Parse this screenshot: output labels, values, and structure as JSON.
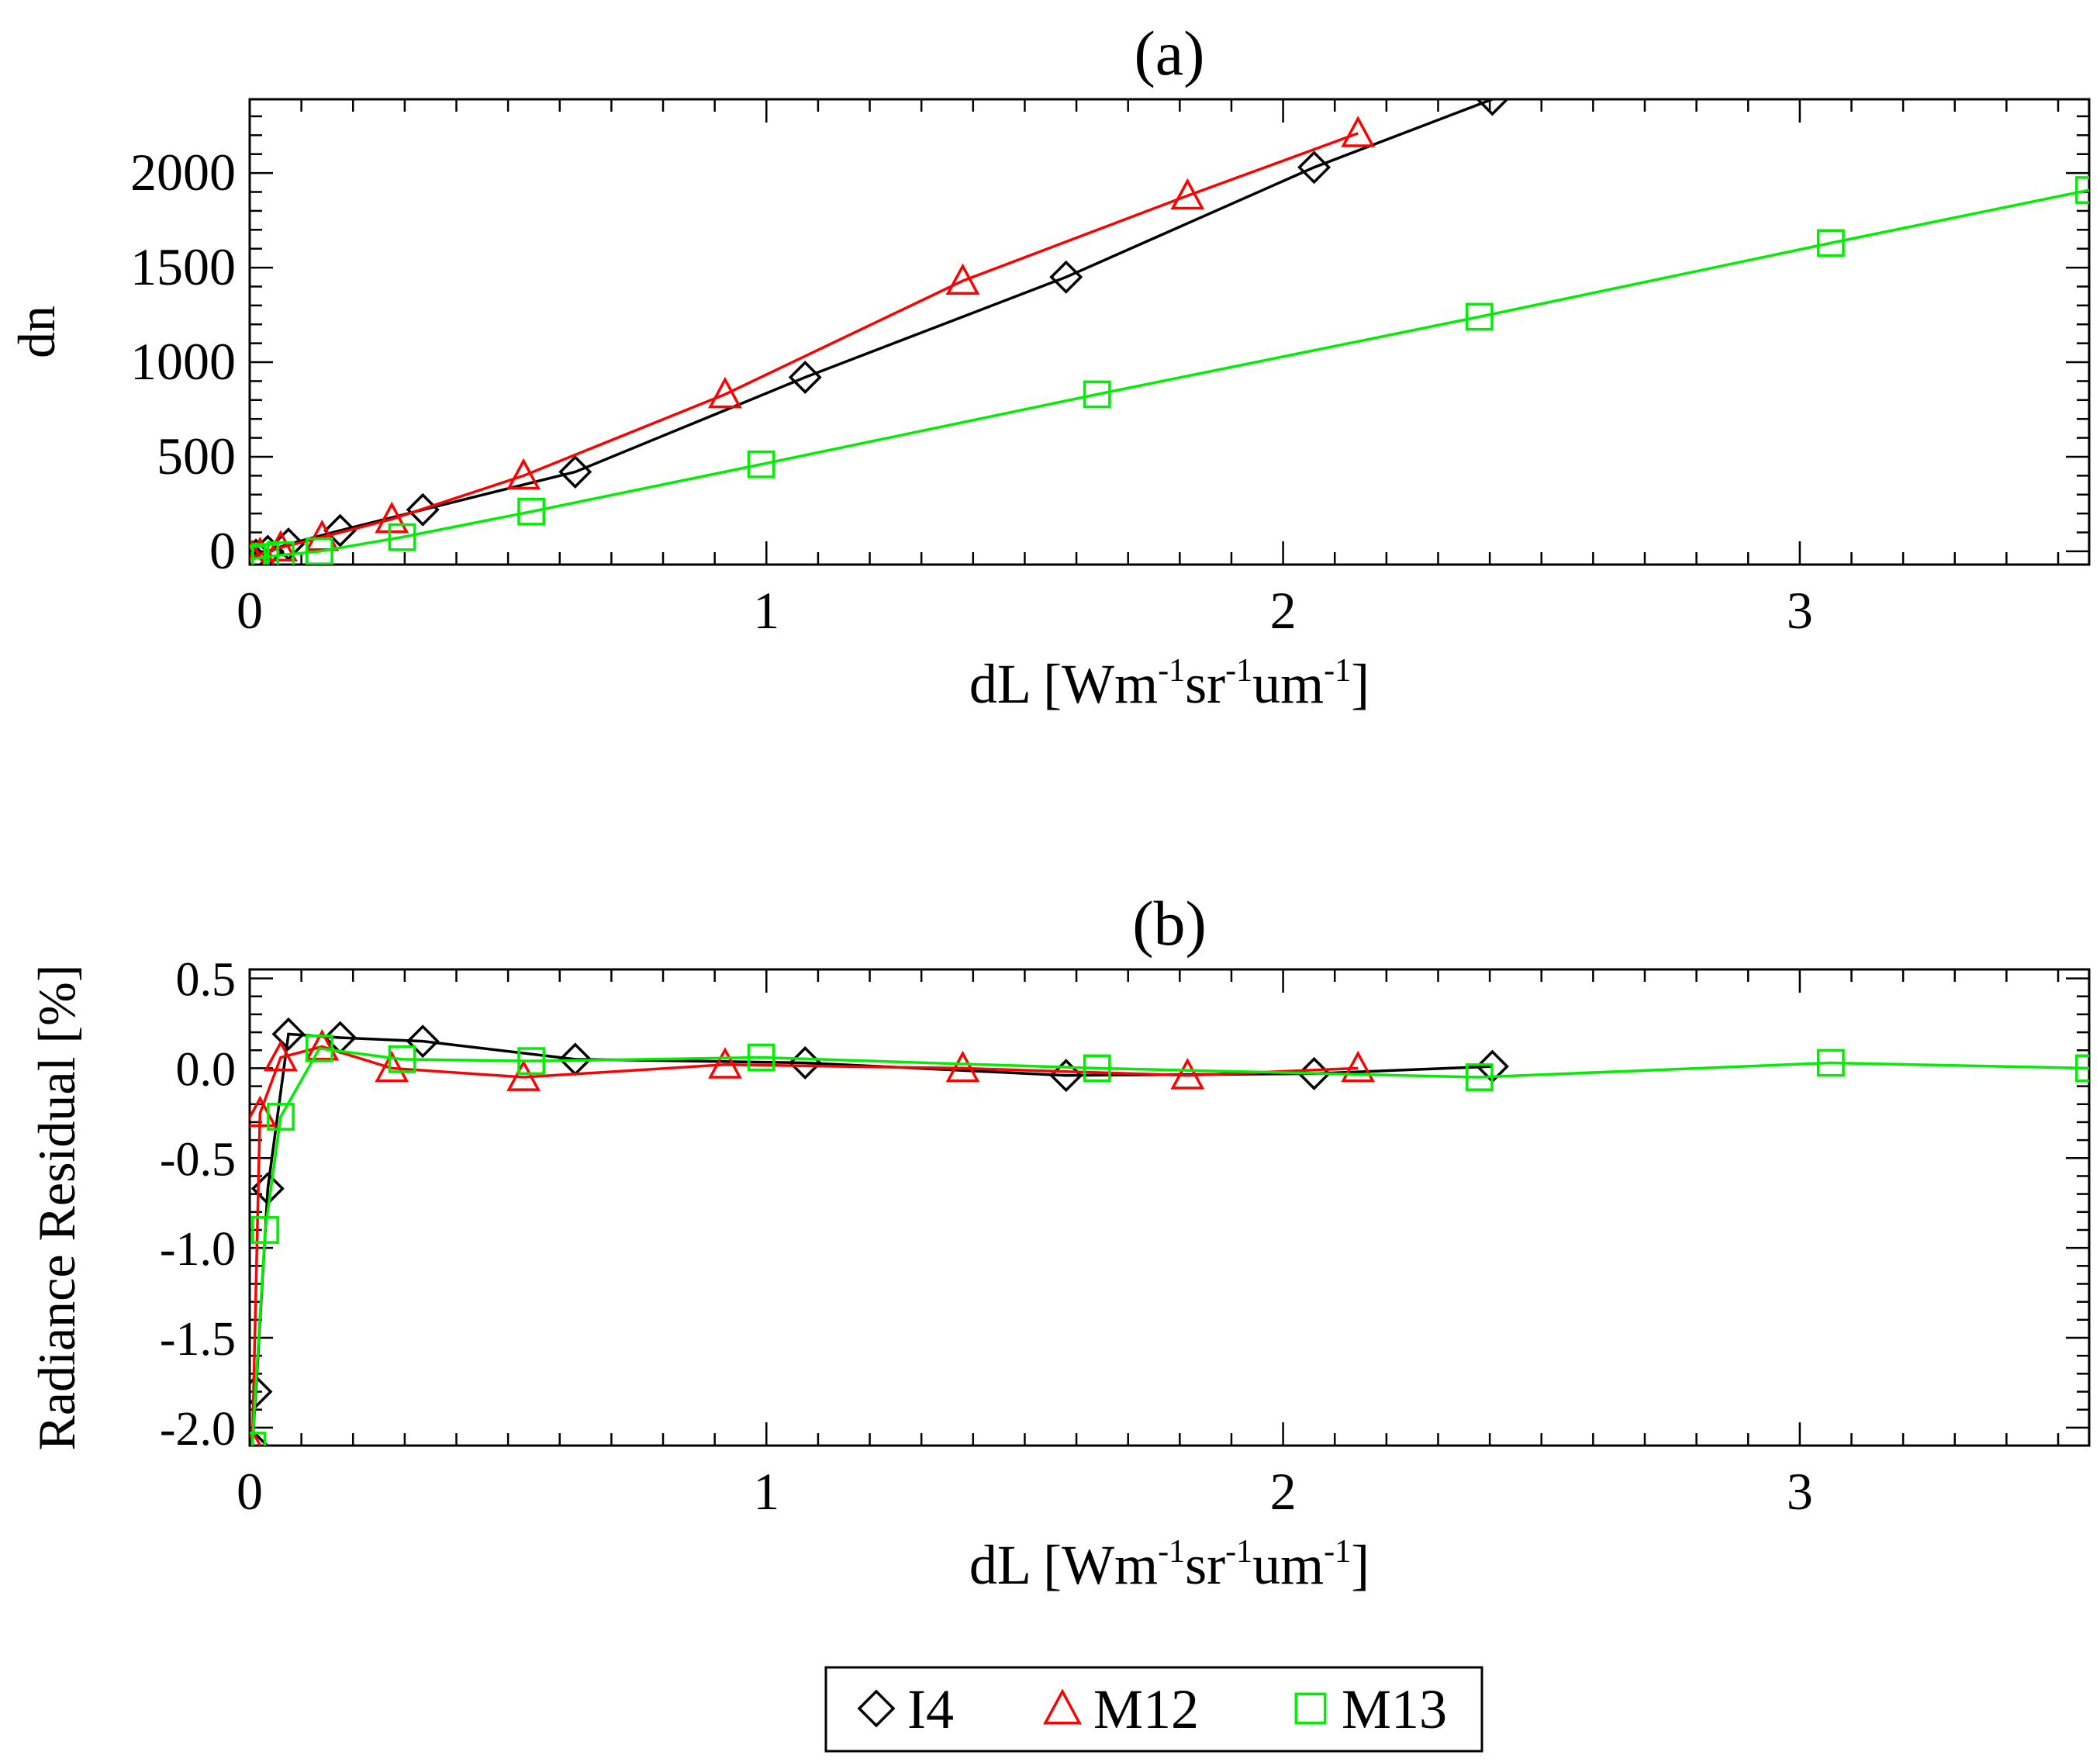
{
  "chart_data": [
    {
      "type": "line",
      "title": "(a)",
      "xlabel": {
        "base": "dL [Wm",
        "exp1": "-1",
        "mid1": "sr",
        "exp2": "-1",
        "mid2": "um",
        "exp3": "-1",
        "end": "]"
      },
      "ylabel": "dn",
      "xlim": [
        0,
        3.56
      ],
      "ylim": [
        -70,
        2390
      ],
      "xticks": [
        0,
        1,
        2,
        3
      ],
      "xtick_labels": [
        "0",
        "1",
        "2",
        "3"
      ],
      "yticks": [
        0,
        500,
        1000,
        1500,
        2000
      ],
      "ytick_labels": [
        "0",
        "500",
        "1000",
        "1500",
        "2000"
      ],
      "series": [
        {
          "name": "I4",
          "marker": "diamond",
          "color": "#000000",
          "x": [
            0.005,
            0.012,
            0.035,
            0.075,
            0.175,
            0.335,
            0.63,
            1.075,
            1.58,
            2.06,
            2.405
          ],
          "y": [
            -35,
            -20,
            0,
            38,
            110,
            220,
            420,
            920,
            1450,
            2030,
            2390
          ]
        },
        {
          "name": "M12",
          "marker": "triangle",
          "color": "#ff0000",
          "x": [
            0.005,
            0.02,
            0.06,
            0.14,
            0.275,
            0.53,
            0.92,
            1.38,
            1.815,
            2.145
          ],
          "y": [
            -30,
            -15,
            20,
            75,
            170,
            400,
            830,
            1430,
            1880,
            2210
          ]
        },
        {
          "name": "M13",
          "marker": "square",
          "color": "#00ee00",
          "x": [
            0.005,
            0.03,
            0.06,
            0.135,
            0.295,
            0.545,
            0.99,
            1.64,
            2.38,
            3.06,
            3.56
          ],
          "y": [
            -40,
            -30,
            -20,
            0,
            75,
            210,
            460,
            830,
            1240,
            1630,
            1910
          ]
        }
      ]
    },
    {
      "type": "line",
      "title": "(b)",
      "xlabel": {
        "base": "dL [Wm",
        "exp1": "-1",
        "mid1": "sr",
        "exp2": "-1",
        "mid2": "um",
        "exp3": "-1",
        "end": "]"
      },
      "ylabel": "Radiance Residual [%]",
      "xlim": [
        0,
        3.56
      ],
      "ylim": [
        -2.1,
        0.55
      ],
      "xticks": [
        0,
        1,
        2,
        3
      ],
      "xtick_labels": [
        "0",
        "1",
        "2",
        "3"
      ],
      "yticks": [
        0.5,
        0.0,
        -0.5,
        -1.0,
        -1.5,
        -2.0
      ],
      "ytick_labels": [
        "0.5",
        "0.0",
        "-0.5",
        "-1.0",
        "-1.5",
        "-2.0"
      ],
      "series": [
        {
          "name": "I4",
          "marker": "diamond",
          "color": "#000000",
          "x": [
            0.005,
            0.012,
            0.035,
            0.075,
            0.175,
            0.335,
            0.63,
            1.075,
            1.58,
            2.06,
            2.405
          ],
          "y": [
            -2.1,
            -1.8,
            -0.67,
            0.19,
            0.17,
            0.15,
            0.05,
            0.03,
            -0.04,
            -0.03,
            0.01
          ]
        },
        {
          "name": "M12",
          "marker": "triangle",
          "color": "#ff0000",
          "x": [
            0.005,
            0.02,
            0.06,
            0.14,
            0.275,
            0.53,
            0.92,
            1.38,
            1.815,
            2.145
          ],
          "y": [
            -2.1,
            -0.25,
            0.06,
            0.12,
            0.0,
            -0.05,
            0.02,
            0.0,
            -0.04,
            0.0
          ]
        },
        {
          "name": "M13",
          "marker": "square",
          "color": "#00ee00",
          "x": [
            0.005,
            0.03,
            0.06,
            0.135,
            0.295,
            0.545,
            0.99,
            1.64,
            2.38,
            3.06,
            3.56
          ],
          "y": [
            -2.1,
            -0.9,
            -0.27,
            0.11,
            0.05,
            0.04,
            0.06,
            0.0,
            -0.05,
            0.03,
            0.0
          ]
        }
      ]
    }
  ],
  "legend": {
    "items": [
      {
        "label": "I4",
        "marker": "diamond",
        "color": "#000000"
      },
      {
        "label": "M12",
        "marker": "triangle",
        "color": "#ff0000"
      },
      {
        "label": "M13",
        "marker": "square",
        "color": "#00ee00"
      }
    ]
  }
}
